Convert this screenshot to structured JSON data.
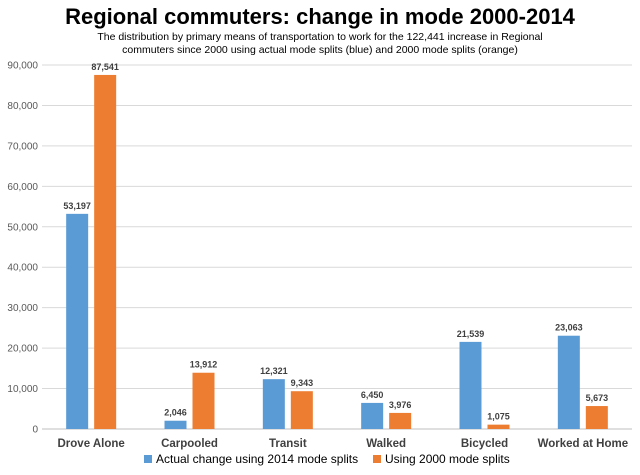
{
  "chart_data": {
    "type": "bar",
    "title": "Regional commuters: change in mode 2000-2014",
    "subtitle": "The distribution by primary means of transportation to work for the 122,441 increase in Regional commuters since 2000 using actual mode splits (blue) and 2000 mode splits (orange)",
    "categories": [
      "Drove Alone",
      "Carpooled",
      "Transit",
      "Walked",
      "Bicycled",
      "Worked at Home"
    ],
    "series": [
      {
        "name": "Actual change using 2014 mode splits",
        "color": "#5B9BD5",
        "values": [
          53197,
          2046,
          12321,
          6450,
          21539,
          23063
        ],
        "labels": [
          "53,197",
          "2,046",
          "12,321",
          "6,450",
          "21,539",
          "23,063"
        ]
      },
      {
        "name": "Using 2000 mode splits",
        "color": "#ED7D31",
        "values": [
          87541,
          13912,
          9343,
          3976,
          1075,
          5673
        ],
        "labels": [
          "87,541",
          "13,912",
          "9,343",
          "3,976",
          "1,075",
          "5,673"
        ]
      }
    ],
    "ylim": [
      0,
      90000
    ],
    "yticks": [
      0,
      10000,
      20000,
      30000,
      40000,
      50000,
      60000,
      70000,
      80000,
      90000
    ],
    "ytick_labels": [
      "0",
      "10,000",
      "20,000",
      "30,000",
      "40,000",
      "50,000",
      "60,000",
      "70,000",
      "80,000",
      "90,000"
    ],
    "grid": true,
    "legend_position": "bottom"
  }
}
